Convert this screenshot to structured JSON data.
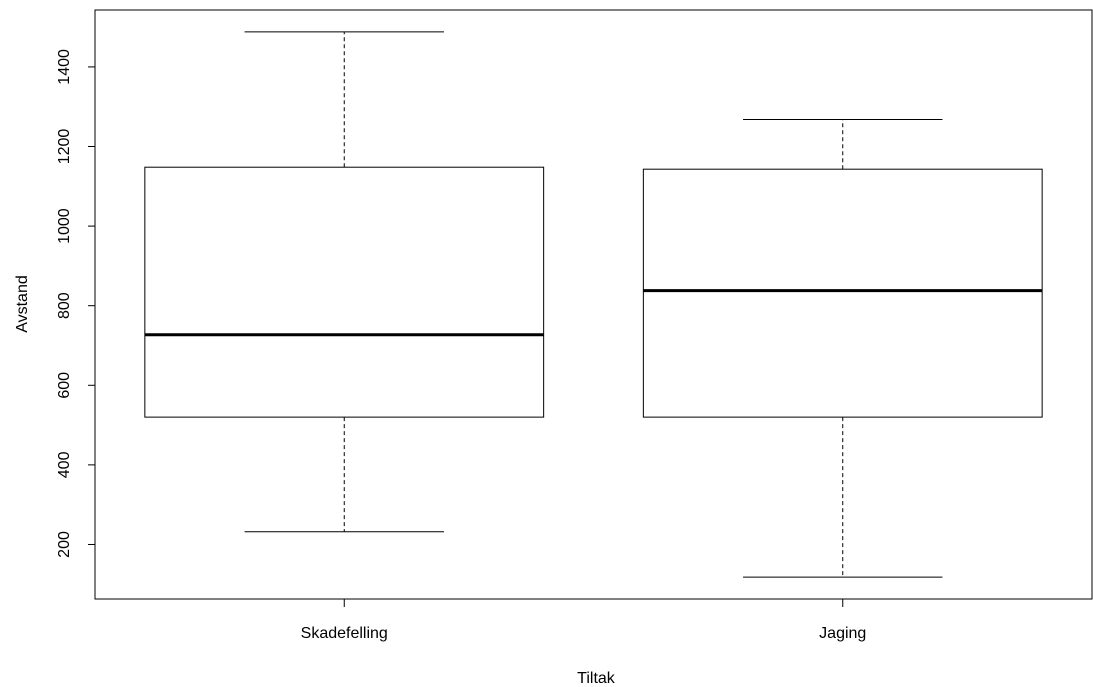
{
  "chart_data": {
    "type": "boxplot",
    "title": "",
    "xlabel": "Tiltak",
    "ylabel": "Avstand",
    "categories": [
      "Skadefelling",
      "Jaging"
    ],
    "boxes": [
      {
        "category": "Skadefelling",
        "whisker_low": 232,
        "q1": 520,
        "median": 727,
        "q3": 1148,
        "whisker_high": 1488
      },
      {
        "category": "Jaging",
        "whisker_low": 118,
        "q1": 520,
        "median": 838,
        "q3": 1143,
        "whisker_high": 1268
      }
    ],
    "yticks": [
      200,
      400,
      600,
      800,
      1000,
      1200,
      1400
    ],
    "ylim": [
      63,
      1543
    ],
    "grid": false,
    "legend": "none",
    "colors": {
      "stroke": "#000000",
      "fill": "#ffffff"
    }
  }
}
